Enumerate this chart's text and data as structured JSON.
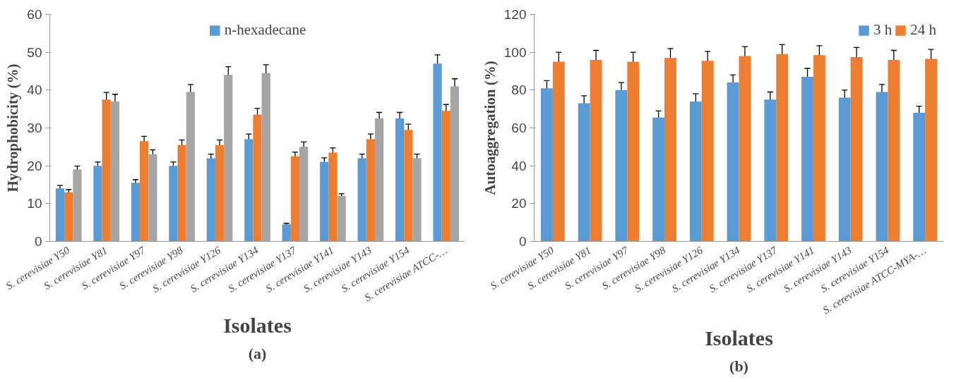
{
  "chart_data": [
    {
      "type": "bar",
      "xlabel": "Isolates",
      "ylabel": "Hydrophobicity (%)",
      "annotations": [
        "(a)"
      ],
      "categories": [
        "S. cerevisiae Y50",
        "S. cerevisiae Y81",
        "S. cerevisiae Y97",
        "S. cerevisiae Y98",
        "S. cerevisiae Y126",
        "S. cerevisiae Y134",
        "S. cerevisiae Y137",
        "S. cerevisiae Y141",
        "S. cerevisiae Y143",
        "S. cerevisiae Y154",
        "S. cerevisiae ATCC-…"
      ],
      "series": [
        {
          "name": "n-hexadecane",
          "color": "#5b9bd5",
          "values": [
            14,
            20,
            15.5,
            20,
            22,
            27,
            4.5,
            21,
            22,
            32.5,
            47
          ],
          "errors": [
            0.8,
            1,
            0.8,
            1,
            1.1,
            1.4,
            0.3,
            1.1,
            1.1,
            1.6,
            2.3
          ]
        },
        {
          "color": "#ed7d31",
          "values": [
            13,
            37.5,
            26.5,
            25.5,
            25.5,
            33.5,
            22.5,
            23.5,
            27,
            29.5,
            34.5
          ],
          "errors": [
            0.7,
            1.9,
            1.3,
            1.3,
            1.3,
            1.7,
            1.1,
            1.2,
            1.4,
            1.5,
            1.7
          ]
        },
        {
          "color": "#a5a5a5",
          "values": [
            19,
            37,
            23,
            39.5,
            44,
            44.5,
            25,
            12,
            32.5,
            22,
            41
          ],
          "errors": [
            0.9,
            1.9,
            1.2,
            2,
            2.2,
            2.2,
            1.3,
            0.6,
            1.6,
            1.1,
            2
          ]
        }
      ],
      "ylim": [
        0,
        60
      ],
      "yticks": [
        0,
        10,
        20,
        30,
        40,
        50,
        60
      ],
      "grid": false,
      "legend": "top"
    },
    {
      "type": "bar",
      "xlabel": "Isolates",
      "ylabel": "Autoaggregation (%)",
      "annotations": [
        "(b)"
      ],
      "categories": [
        "S. cerevisiae Y50",
        "S. cerevisiae Y81",
        "S. cerevisiae Y97",
        "S. cerevisiae Y98",
        "S. cerevisiae Y126",
        "S. cerevisiae Y134",
        "S. cerevisiae Y137",
        "S. cerevisiae Y141",
        "S. cerevisiae Y143",
        "S. cerevisiae Y154",
        "S. cerevisiae ATCC-MYA-…"
      ],
      "series": [
        {
          "name": "3 h",
          "color": "#5b9bd5",
          "values": [
            81,
            73,
            80,
            65.5,
            74,
            84,
            75,
            87,
            76,
            79,
            68
          ],
          "errors": [
            4,
            4,
            4,
            3.5,
            4,
            4,
            4,
            4.5,
            4,
            4,
            3.5
          ]
        },
        {
          "name": "24 h",
          "color": "#ed7d31",
          "values": [
            95,
            96,
            95,
            97,
            95.5,
            98,
            99,
            98.5,
            97.5,
            96,
            96.5
          ],
          "errors": [
            5,
            5,
            5,
            5,
            5,
            5,
            5,
            5,
            5,
            5,
            5
          ]
        }
      ],
      "ylim": [
        0,
        120
      ],
      "yticks": [
        0,
        20,
        40,
        60,
        80,
        100,
        120
      ],
      "grid": false,
      "legend": "top right"
    }
  ]
}
